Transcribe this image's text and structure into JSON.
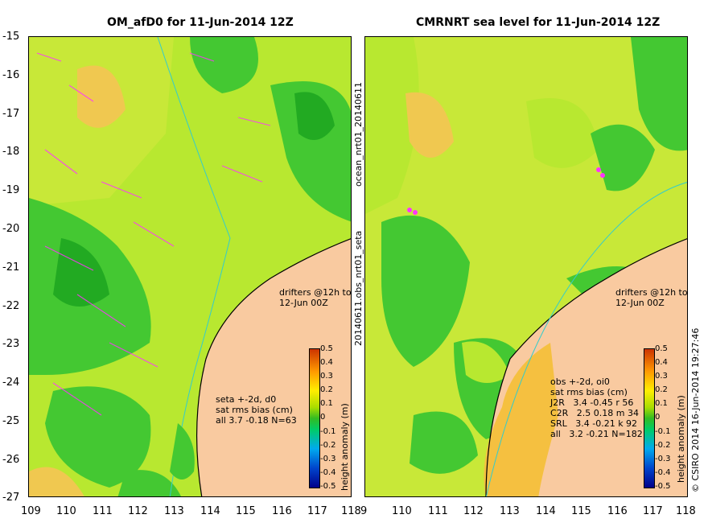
{
  "left": {
    "title": "OM_afD0 for 11-Jun-2014 12Z",
    "legend_text": "seta +-2d, d0\nsat rms bias (cm)\nall 3.7 -0.18 N=63",
    "drifters_text": "drifters @12h to\n12-Jun 00Z"
  },
  "right": {
    "title": "CMRNRT sea level  for 11-Jun-2014 12Z",
    "legend_text": "obs +-2d, oi0\nsat rms bias (cm)\nJ2R   3.4 -0.45 r 56\nC2R   2.5 0.18 m 34\nSRL   3.4 -0.21 k 92\nall   3.2 -0.21 N=182",
    "drifters_text": "drifters @12h to\n12-Jun 00Z"
  },
  "axes": {
    "lat_ticks": [
      "-15",
      "-16",
      "-17",
      "-18",
      "-19",
      "-20",
      "-21",
      "-22",
      "-23",
      "-24",
      "-25",
      "-26",
      "-27"
    ],
    "left_lon_ticks": [
      "109",
      "110",
      "111",
      "112",
      "113",
      "114",
      "115",
      "116",
      "117",
      "118"
    ],
    "right_lon_ticks": [
      "9",
      "110",
      "111",
      "112",
      "113",
      "114",
      "115",
      "116",
      "117",
      "118"
    ]
  },
  "colorbar": {
    "label": "height anomaly (m)",
    "ticks": [
      "0.5",
      "0.4",
      "0.3",
      "0.2",
      "0.1",
      "0",
      "-0.1",
      "-0.2",
      "-0.3",
      "-0.4",
      "-0.5"
    ]
  },
  "vertical_labels": {
    "top": "ocean_nrt01_20140611",
    "bottom": "20140611.obs_nrt01_seta",
    "credit": "© CSIRO 2014   16-Jun-2014 19:27:46"
  },
  "colors": {
    "land": "#f9caa0",
    "green": "#44c832",
    "yellow_green": "#b8e830",
    "yellow": "#e6f020",
    "orange": "#f5c040",
    "drifter": "#ff33ff",
    "coastline_line": "#33cccc"
  }
}
